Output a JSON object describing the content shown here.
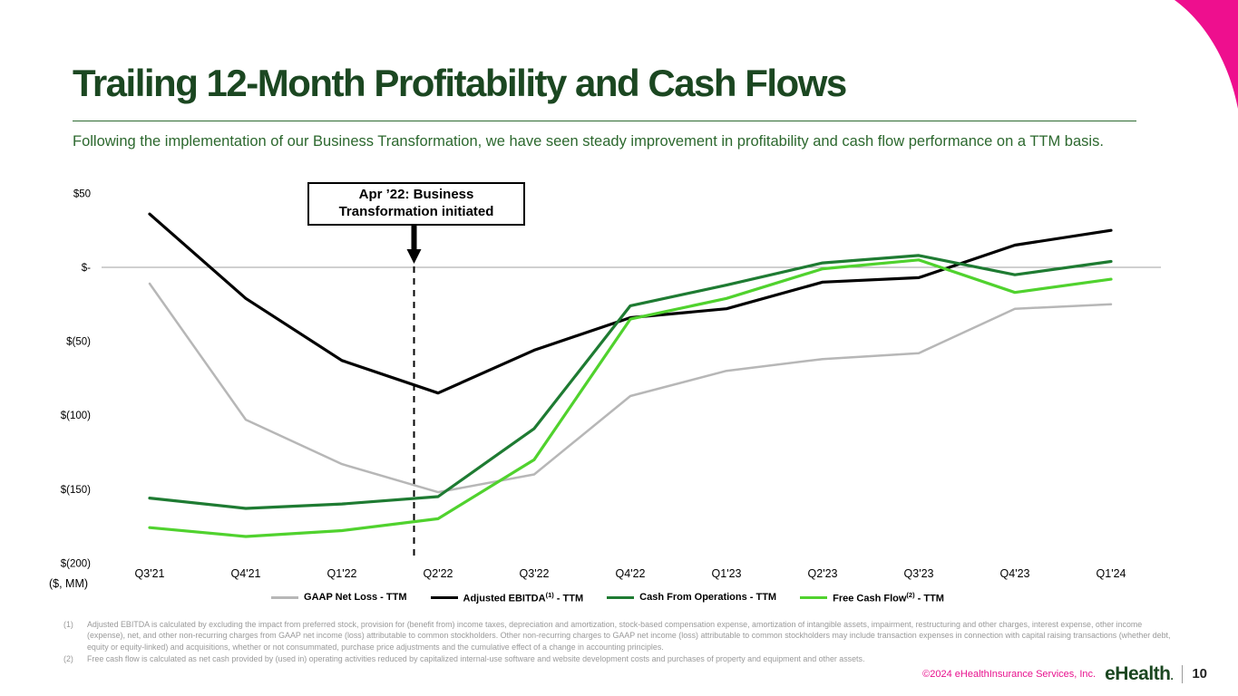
{
  "header": {
    "title": "Trailing 12-Month Profitability and Cash Flows",
    "subtitle": "Following the implementation of our Business Transformation, we have seen steady improvement in profitability and cash flow performance on a TTM basis."
  },
  "chart_data": {
    "type": "line",
    "title": "Trailing 12-Month Profitability and Cash Flows",
    "unit_label": "($, MM)",
    "categories": [
      "Q3'21",
      "Q4'21",
      "Q1'22",
      "Q2'22",
      "Q3'22",
      "Q4'22",
      "Q1'23",
      "Q2'23",
      "Q3'23",
      "Q4'23",
      "Q1'24"
    ],
    "ylim": [
      -200,
      50
    ],
    "grid": "zero-line-only",
    "legend_position": "bottom",
    "y_ticks": [
      {
        "label": "$50",
        "value": 50
      },
      {
        "label": "$-",
        "value": 0
      },
      {
        "label": "$(50)",
        "value": -50
      },
      {
        "label": "$(100)",
        "value": -100
      },
      {
        "label": "$(150)",
        "value": -150
      },
      {
        "label": "$(200)",
        "value": -200
      }
    ],
    "series": [
      {
        "name": "GAAP Net Loss",
        "sup": "",
        "suffix": " - TTM",
        "color": "#b7b7b7",
        "values": [
          -11,
          -103,
          -133,
          -152,
          -140,
          -87,
          -70,
          -62,
          -58,
          -28,
          -25
        ]
      },
      {
        "name": "Adjusted EBITDA",
        "sup": "(1)",
        "suffix": " - TTM",
        "color": "#000000",
        "values": [
          36,
          -21,
          -63,
          -85,
          -56,
          -34,
          -28,
          -10,
          -7,
          15,
          25
        ]
      },
      {
        "name": "Cash From Operations",
        "sup": "",
        "suffix": " - TTM",
        "color": "#1e7b32",
        "values": [
          -156,
          -163,
          -160,
          -155,
          -109,
          -26,
          -12,
          3,
          8,
          -5,
          4
        ]
      },
      {
        "name": "Free Cash Flow",
        "sup": "(2)",
        "suffix": " - TTM",
        "color": "#50d22e",
        "values": [
          -176,
          -182,
          -178,
          -170,
          -130,
          -35,
          -21,
          -1,
          5,
          -17,
          -8
        ]
      }
    ],
    "annotation": {
      "text": "Apr ’22: Business Transformation initiated",
      "x_index": 2.75
    }
  },
  "footnotes": [
    {
      "num": "(1)",
      "text": "Adjusted EBITDA is calculated by excluding the impact from preferred stock, provision for (benefit from) income taxes, depreciation and amortization, stock-based compensation expense, amortization of intangible assets, impairment, restructuring and other charges, interest expense, other income (expense), net, and other non-recurring charges from GAAP net income (loss) attributable to common stockholders. Other non-recurring charges to GAAP net income (loss) attributable to common stockholders may include transaction expenses in connection with capital raising transactions (whether debt, equity or equity-linked) and acquisitions, whether or not consummated, purchase price adjustments and the cumulative effect of a change in accounting principles."
    },
    {
      "num": "(2)",
      "text": "Free cash flow is calculated as net cash provided by (used in) operating activities reduced by capitalized internal-use software and website development costs and purchases of property and equipment and other assets."
    }
  ],
  "footer": {
    "copyright": "©2024 eHealthInsurance Services, Inc.",
    "logo_text": "eHealth",
    "logo_suffix": ".",
    "page_number": "10"
  },
  "colors": {
    "brand_dark_green": "#1b4721",
    "subtitle_green": "#2c682e",
    "accent_pink": "#ee0f8e"
  }
}
